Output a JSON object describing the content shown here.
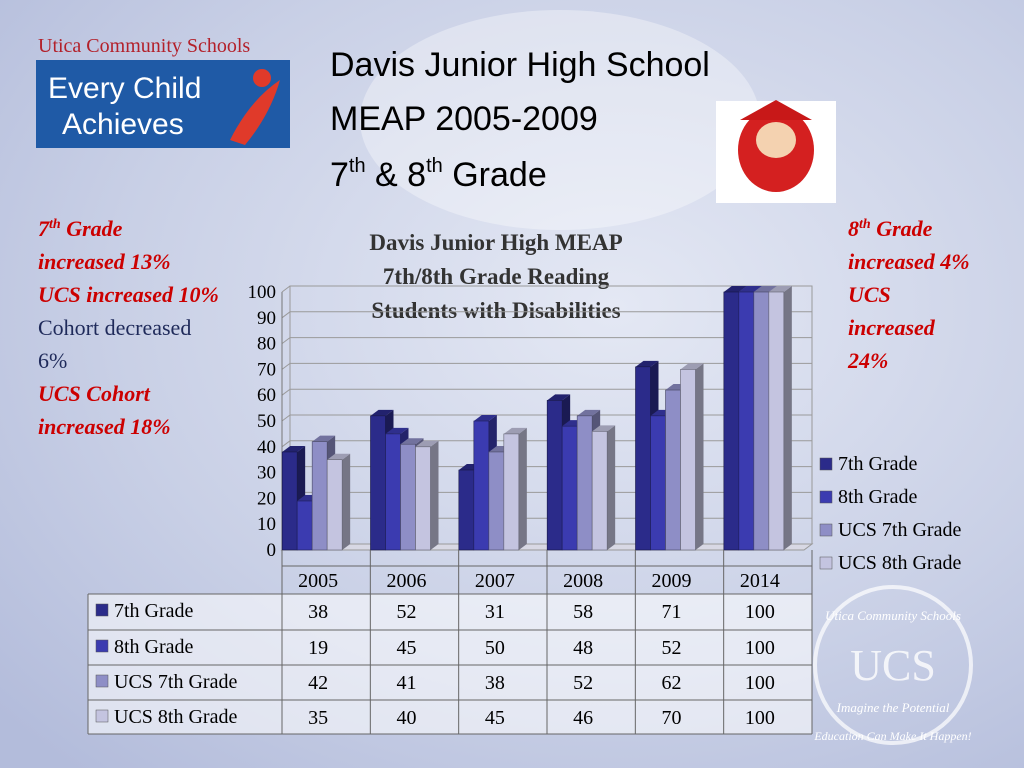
{
  "slide": {
    "logo": {
      "org": "Utica Community Schools",
      "line1": "Every Child",
      "line2": "Achieves"
    },
    "heading": {
      "line1": "Davis Junior High School",
      "line2": "MEAP 2005-2009",
      "line3": [
        "7",
        "th",
        " & 8",
        "th",
        " Grade"
      ]
    },
    "left_notes": [
      {
        "parts": [
          "7",
          "th",
          " Grade increased 13%"
        ],
        "color": "#cc0000"
      },
      {
        "parts": [
          "UCS increased 10%"
        ],
        "color": "#cc0000"
      },
      {
        "parts": [
          "Cohort decreased 6%"
        ],
        "color": "#1f2a5a"
      },
      {
        "parts": [
          "UCS Cohort increased 18%"
        ],
        "color": "#cc0000"
      }
    ],
    "right_notes": [
      {
        "parts": [
          "8",
          "th",
          " Grade increased 4%"
        ],
        "color": "#cc0000"
      },
      {
        "parts": [
          "UCS increased 24%"
        ],
        "color": "#cc0000"
      }
    ],
    "seal": {
      "top": "Utica Community Schools",
      "center": "UCS",
      "motto": "Imagine the Potential",
      "tagline": "Education Can Make It Happen!"
    }
  },
  "chart_data": {
    "type": "bar",
    "title": [
      "Davis Junior High MEAP",
      "7th/8th Grade Reading",
      "Students with Disabilities"
    ],
    "categories": [
      "2005",
      "2006",
      "2007",
      "2008",
      "2009",
      "2014"
    ],
    "series": [
      {
        "name": "7th Grade",
        "color": "#2b2b8a",
        "values": [
          38,
          52,
          31,
          58,
          71,
          100
        ]
      },
      {
        "name": "8th Grade",
        "color": "#3b3bb0",
        "values": [
          19,
          45,
          50,
          48,
          52,
          100
        ]
      },
      {
        "name": "UCS 7th Grade",
        "color": "#8e8ec6",
        "values": [
          42,
          41,
          38,
          52,
          62,
          100
        ]
      },
      {
        "name": "UCS 8th Grade",
        "color": "#c4c4e0",
        "values": [
          35,
          40,
          45,
          46,
          70,
          100
        ]
      }
    ],
    "ylim": [
      0,
      100
    ],
    "yticks": [
      0,
      10,
      20,
      30,
      40,
      50,
      60,
      70,
      80,
      90,
      100
    ],
    "grid": true,
    "legend": "right"
  }
}
